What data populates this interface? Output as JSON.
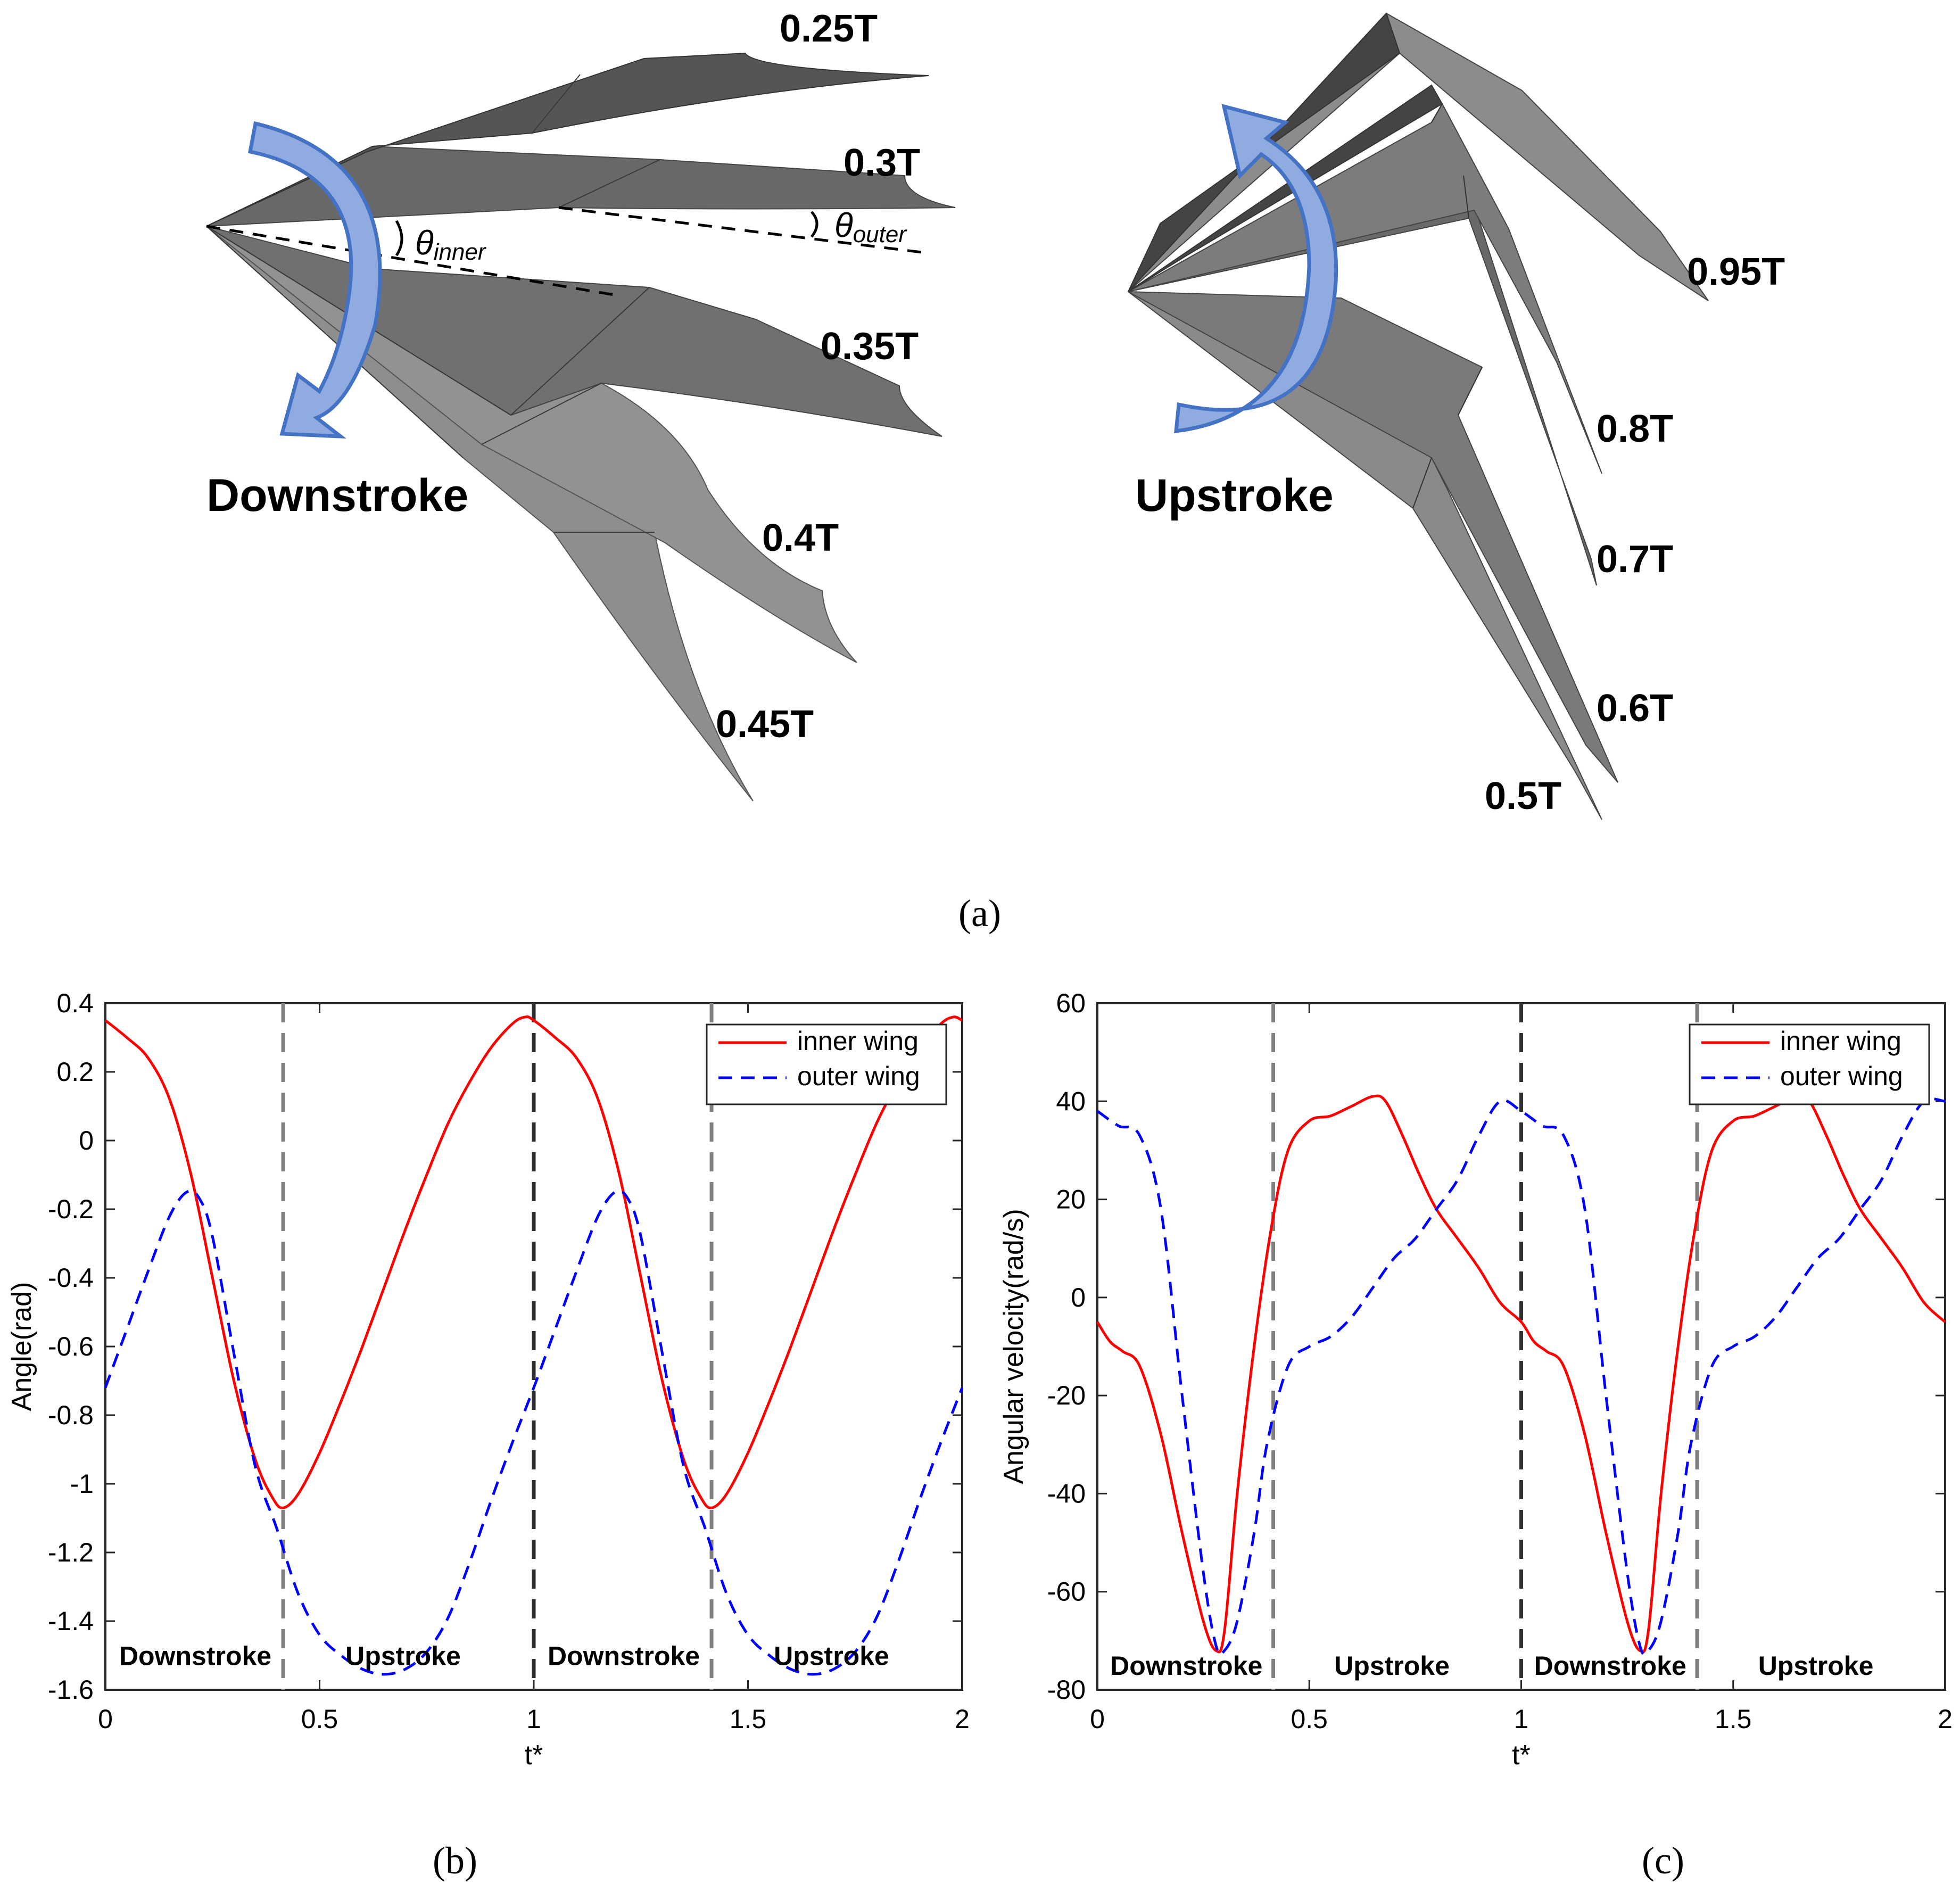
{
  "panel_a": {
    "caption": "(a)",
    "downstroke_label": "Downstroke",
    "upstroke_label": "Upstroke",
    "theta_symbol": "θ",
    "theta_inner_sub": "inner",
    "theta_outer_sub": "outer",
    "downstroke_times": [
      "0.25T",
      "0.3T",
      "0.35T",
      "0.4T",
      "0.45T"
    ],
    "upstroke_times": [
      "0.95T",
      "0.8T",
      "0.7T",
      "0.6T",
      "0.5T"
    ],
    "colors": {
      "arrow_fill": "#8fabe0",
      "arrow_stroke": "#4472c4"
    }
  },
  "chart_data": [
    {
      "id": "b",
      "caption": "(b)",
      "type": "line",
      "xlabel": "t*",
      "ylabel": "Angle(rad)",
      "xlim": [
        0,
        2
      ],
      "ylim": [
        -1.6,
        0.4
      ],
      "xticks": [
        0,
        0.5,
        1,
        1.5,
        2
      ],
      "xtick_labels": [
        "0",
        "0.5",
        "1",
        "1.5",
        "2"
      ],
      "yticks": [
        -1.6,
        -1.4,
        -1.2,
        -1,
        -0.8,
        -0.6,
        -0.4,
        -0.2,
        0,
        0.2,
        0.4
      ],
      "ytick_labels": [
        "-1.6",
        "-1.4",
        "-1.2",
        "-1",
        "-0.8",
        "-0.6",
        "-0.4",
        "-0.2",
        "0",
        "0.2",
        "0.4"
      ],
      "legend_position": "top-right",
      "vlines": [
        {
          "x": 0.415,
          "color": "#808080"
        },
        {
          "x": 1.0,
          "color": "#303030"
        },
        {
          "x": 1.415,
          "color": "#808080"
        }
      ],
      "phase_labels": [
        {
          "text": "Downstroke",
          "x": 0.21,
          "y": -1.5
        },
        {
          "text": "Upstroke",
          "x": 0.695,
          "y": -1.5
        },
        {
          "text": "Downstroke",
          "x": 1.21,
          "y": -1.5
        },
        {
          "text": "Upstroke",
          "x": 1.695,
          "y": -1.5
        }
      ],
      "series": [
        {
          "name": "inner wing",
          "color": "#ff0000",
          "dash": "solid",
          "x": [
            0,
            0.05,
            0.1,
            0.15,
            0.2,
            0.25,
            0.3,
            0.35,
            0.39,
            0.415,
            0.45,
            0.5,
            0.55,
            0.6,
            0.65,
            0.7,
            0.75,
            0.8,
            0.85,
            0.9,
            0.95,
            0.98,
            1.0,
            1.05,
            1.1,
            1.15,
            1.2,
            1.25,
            1.3,
            1.35,
            1.39,
            1.415,
            1.45,
            1.5,
            1.55,
            1.6,
            1.65,
            1.7,
            1.75,
            1.8,
            1.85,
            1.9,
            1.95,
            1.98,
            2.0
          ],
          "y": [
            0.35,
            0.3,
            0.24,
            0.12,
            -0.1,
            -0.4,
            -0.7,
            -0.93,
            -1.04,
            -1.07,
            -1.03,
            -0.91,
            -0.76,
            -0.6,
            -0.43,
            -0.26,
            -0.1,
            0.05,
            0.17,
            0.27,
            0.34,
            0.36,
            0.35,
            0.3,
            0.24,
            0.12,
            -0.1,
            -0.4,
            -0.7,
            -0.93,
            -1.04,
            -1.07,
            -1.03,
            -0.91,
            -0.76,
            -0.6,
            -0.43,
            -0.26,
            -0.1,
            0.05,
            0.17,
            0.27,
            0.34,
            0.36,
            0.35
          ]
        },
        {
          "name": "outer wing",
          "color": "#0000ff",
          "dash": "dashed",
          "x": [
            0,
            0.05,
            0.1,
            0.15,
            0.19,
            0.22,
            0.25,
            0.3,
            0.35,
            0.4,
            0.45,
            0.5,
            0.55,
            0.6,
            0.65,
            0.7,
            0.75,
            0.8,
            0.85,
            0.9,
            0.95,
            1.0,
            1.05,
            1.1,
            1.15,
            1.19,
            1.22,
            1.25,
            1.3,
            1.35,
            1.4,
            1.45,
            1.5,
            1.55,
            1.6,
            1.65,
            1.7,
            1.75,
            1.8,
            1.85,
            1.9,
            1.95,
            2.0
          ],
          "y": [
            -0.72,
            -0.55,
            -0.38,
            -0.22,
            -0.15,
            -0.17,
            -0.28,
            -0.62,
            -0.95,
            -1.13,
            -1.32,
            -1.44,
            -1.5,
            -1.54,
            -1.555,
            -1.54,
            -1.49,
            -1.39,
            -1.23,
            -1.05,
            -0.88,
            -0.72,
            -0.55,
            -0.38,
            -0.22,
            -0.15,
            -0.17,
            -0.28,
            -0.62,
            -0.95,
            -1.13,
            -1.32,
            -1.44,
            -1.5,
            -1.54,
            -1.555,
            -1.54,
            -1.49,
            -1.39,
            -1.23,
            -1.05,
            -0.88,
            -0.72
          ]
        }
      ]
    },
    {
      "id": "c",
      "caption": "(c)",
      "type": "line",
      "xlabel": "t*",
      "ylabel": "Angular velocity(rad/s)",
      "xlim": [
        0,
        2
      ],
      "ylim": [
        -80,
        60
      ],
      "xticks": [
        0,
        0.5,
        1,
        1.5,
        2
      ],
      "xtick_labels": [
        "0",
        "0.5",
        "1",
        "1.5",
        "2"
      ],
      "yticks": [
        -80,
        -60,
        -40,
        -20,
        0,
        20,
        40,
        60
      ],
      "ytick_labels": [
        "-80",
        "-60",
        "-40",
        "-20",
        "0",
        "20",
        "40",
        "60"
      ],
      "legend_position": "top-right",
      "vlines": [
        {
          "x": 0.415,
          "color": "#808080"
        },
        {
          "x": 1.0,
          "color": "#303030"
        },
        {
          "x": 1.415,
          "color": "#808080"
        }
      ],
      "phase_labels": [
        {
          "text": "Downstroke",
          "x": 0.21,
          "y": -75
        },
        {
          "text": "Upstroke",
          "x": 0.695,
          "y": -75
        },
        {
          "text": "Downstroke",
          "x": 1.21,
          "y": -75
        },
        {
          "text": "Upstroke",
          "x": 1.695,
          "y": -75
        }
      ],
      "series": [
        {
          "name": "inner wing",
          "color": "#ff0000",
          "dash": "solid",
          "x": [
            0,
            0.03,
            0.06,
            0.1,
            0.15,
            0.2,
            0.25,
            0.28,
            0.3,
            0.33,
            0.37,
            0.41,
            0.45,
            0.5,
            0.55,
            0.6,
            0.65,
            0.68,
            0.72,
            0.76,
            0.8,
            0.85,
            0.9,
            0.95,
            1.0,
            1.03,
            1.06,
            1.1,
            1.15,
            1.2,
            1.25,
            1.28,
            1.3,
            1.33,
            1.37,
            1.41,
            1.45,
            1.5,
            1.55,
            1.6,
            1.65,
            1.68,
            1.72,
            1.76,
            1.8,
            1.85,
            1.9,
            1.95,
            2.0
          ],
          "y": [
            -5,
            -9,
            -11,
            -14,
            -28,
            -48,
            -66,
            -72,
            -68,
            -40,
            -10,
            14,
            30,
            36,
            37,
            39,
            41,
            40,
            33,
            25,
            18,
            12,
            6,
            -1,
            -5,
            -9,
            -11,
            -14,
            -28,
            -48,
            -66,
            -72,
            -68,
            -40,
            -10,
            14,
            30,
            36,
            37,
            39,
            41,
            40,
            33,
            25,
            18,
            12,
            6,
            -1,
            -5
          ]
        },
        {
          "name": "outer wing",
          "color": "#0000ff",
          "dash": "dashed",
          "x": [
            0,
            0.05,
            0.1,
            0.15,
            0.2,
            0.25,
            0.28,
            0.3,
            0.33,
            0.37,
            0.4,
            0.45,
            0.5,
            0.55,
            0.6,
            0.65,
            0.7,
            0.75,
            0.8,
            0.85,
            0.9,
            0.95,
            1.0,
            1.05,
            1.1,
            1.15,
            1.2,
            1.25,
            1.28,
            1.3,
            1.33,
            1.37,
            1.4,
            1.45,
            1.5,
            1.55,
            1.6,
            1.65,
            1.7,
            1.75,
            1.8,
            1.85,
            1.9,
            1.95,
            2.0
          ],
          "y": [
            38,
            35,
            33,
            18,
            -20,
            -56,
            -71,
            -72,
            -66,
            -48,
            -30,
            -14,
            -10,
            -8,
            -4,
            2,
            8,
            12,
            18,
            24,
            33,
            40,
            38,
            35,
            33,
            18,
            -20,
            -56,
            -71,
            -72,
            -66,
            -48,
            -30,
            -14,
            -10,
            -8,
            -4,
            2,
            8,
            12,
            18,
            24,
            33,
            40,
            40
          ]
        }
      ]
    }
  ]
}
